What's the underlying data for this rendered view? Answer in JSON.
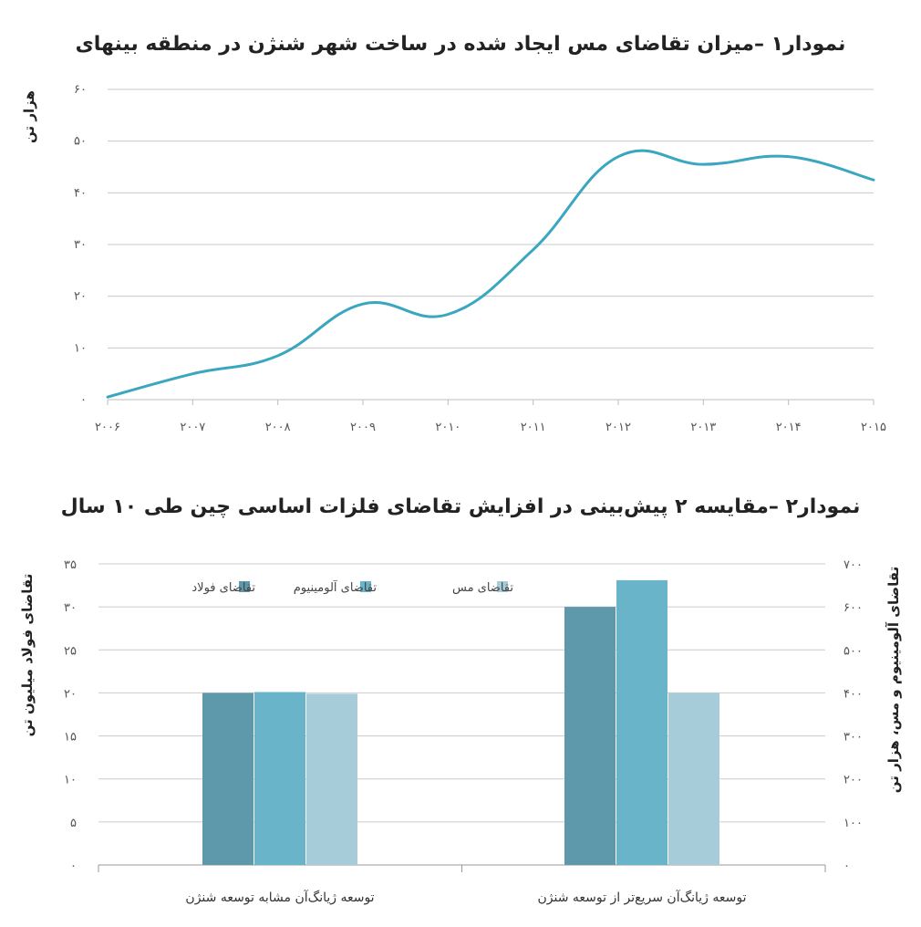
{
  "chart_data": [
    {
      "type": "line",
      "title": "نمودار۱ –میزان تقاضای مس ایجاد شده در ساخت شهر شنژن در منطقه بینهای",
      "ylabel": "هزار تن",
      "xlabel": "",
      "x": [
        "۲۰۰۶",
        "۲۰۰۷",
        "۲۰۰۸",
        "۲۰۰۹",
        "۲۰۱۰",
        "۲۰۱۱",
        "۲۰۱۲",
        "۲۰۱۳",
        "۲۰۱۴",
        "۲۰۱۵"
      ],
      "x_values": [
        2006,
        2007,
        2008,
        2009,
        2010,
        2011,
        2012,
        2013,
        2014,
        2015
      ],
      "y_ticks": [
        "۰",
        "۱۰",
        "۲۰",
        "۳۰",
        "۴۰",
        "۵۰",
        "۶۰"
      ],
      "ylim": [
        0,
        60
      ],
      "grid": true,
      "color": "#3aa6bf",
      "series": [
        {
          "values": [
            0.5,
            5,
            8.5,
            18.5,
            16.5,
            29,
            47,
            45.5,
            47,
            42.5
          ]
        }
      ]
    },
    {
      "type": "bar",
      "title": "نمودار۲ –مقایسه ۲ پیش‌بینی در افزایش تقاضای فلزات اساسی چین طی ۱۰ سال",
      "ylabel": "تقاضای فولاد میلیون تن",
      "ylabel_right": "تقاضای آلومینیوم و مس، هزار تن",
      "categories": [
        "توسعه ژیانگ‌آن مشابه توسعه شنژن",
        "توسعه ژیانگ‌آن سریع‌تر از توسعه شنژن"
      ],
      "y_ticks": [
        "۰",
        "۵",
        "۱۰",
        "۱۵",
        "۲۰",
        "۲۵",
        "۳۰",
        "۳۵"
      ],
      "y2_ticks": [
        "۰",
        "۱۰۰",
        "۲۰۰",
        "۳۰۰",
        "۴۰۰",
        "۵۰۰",
        "۶۰۰",
        "۷۰۰"
      ],
      "ylim": [
        0,
        35
      ],
      "y2lim": [
        0,
        700
      ],
      "legend": "top",
      "series": [
        {
          "name": "تقاضای فولاد",
          "axis": "left",
          "color": "#5e99ab",
          "values": [
            20,
            30
          ]
        },
        {
          "name": "تقاضای آلومینیوم",
          "axis": "right",
          "color": "#6ab4c9",
          "values": [
            402,
            662
          ]
        },
        {
          "name": "تقاضای مس",
          "axis": "right",
          "color": "#a5ccd8",
          "values": [
            398,
            400
          ]
        }
      ]
    }
  ]
}
